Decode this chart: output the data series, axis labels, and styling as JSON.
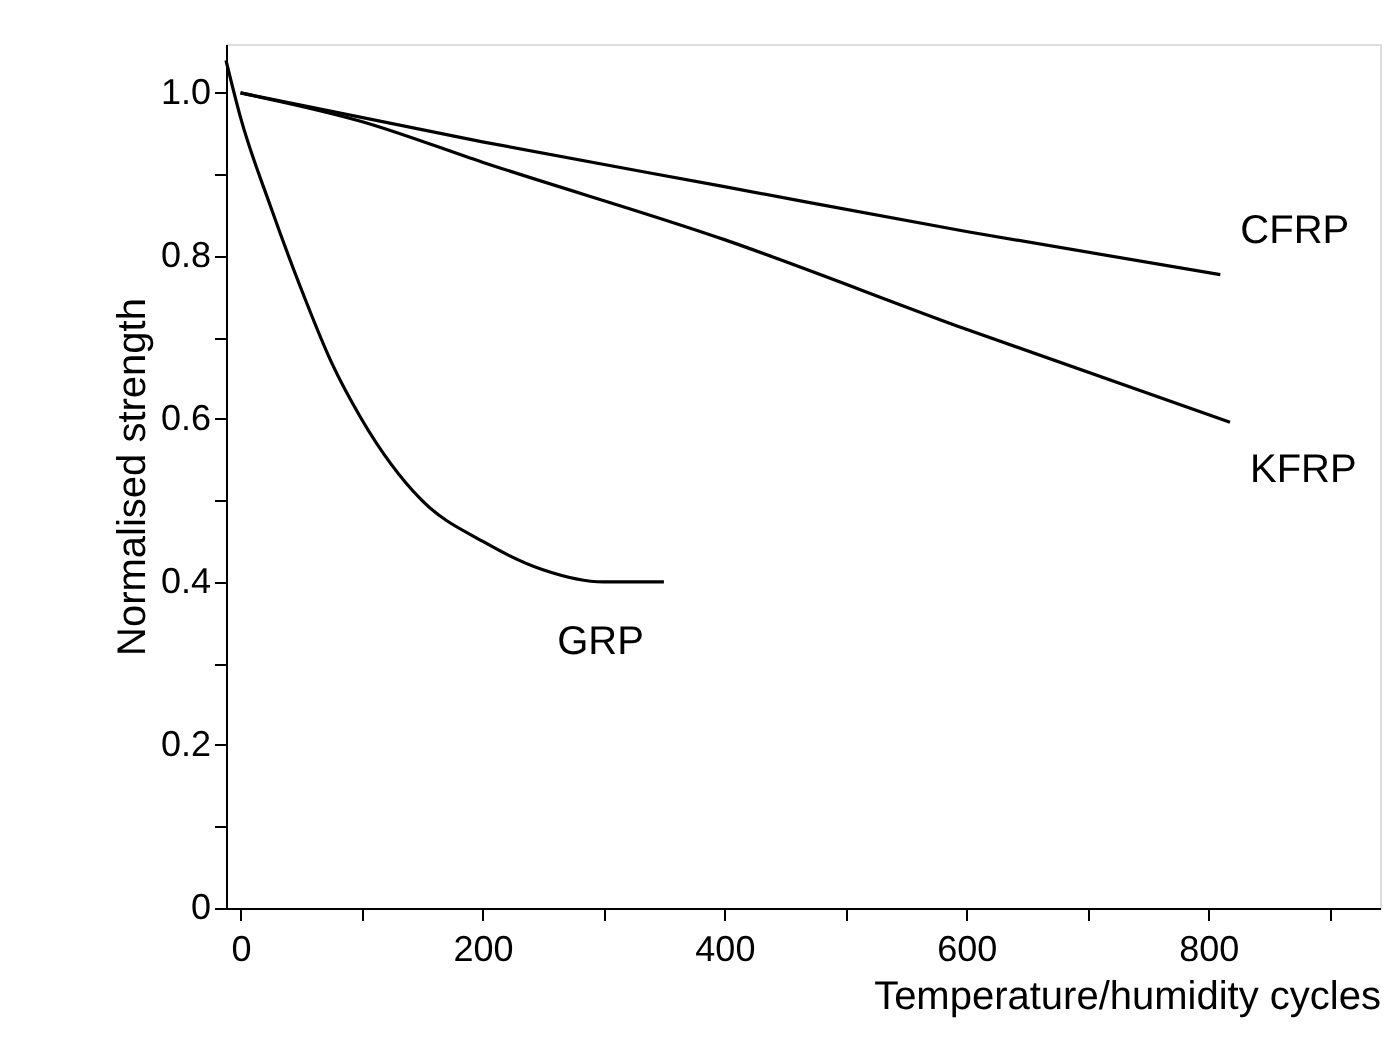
{
  "chart_data": {
    "type": "line",
    "xlabel": "Temperature/humidity cycles",
    "ylabel": "Normalised strength",
    "xlim": [
      -12,
      942
    ],
    "ylim": [
      0,
      1.06
    ],
    "xticks": [
      0,
      {
        "value": 100,
        "label": null
      },
      200,
      {
        "value": 300,
        "label": null
      },
      400,
      {
        "value": 500,
        "label": null
      },
      600,
      {
        "value": 700,
        "label": null
      },
      800,
      {
        "value": 900,
        "label": null
      }
    ],
    "yticks": [
      0,
      {
        "value": 0.1,
        "label": null
      },
      0.2,
      {
        "value": 0.3,
        "label": null
      },
      0.4,
      {
        "value": 0.5,
        "label": null
      },
      0.6,
      {
        "value": 0.7,
        "label": null
      },
      0.8,
      {
        "value": 0.9,
        "label": null
      },
      {
        "value": 1.0,
        "label": "1.0"
      }
    ],
    "grid": false,
    "marker": "none",
    "line_style": "solid",
    "series": [
      {
        "name": "CFRP",
        "color": "#000000",
        "x": [
          0,
          200,
          400,
          600,
          810
        ],
        "values": [
          1.0,
          0.94,
          0.885,
          0.83,
          0.777
        ]
      },
      {
        "name": "KFRP",
        "color": "#000000",
        "x": [
          0,
          100,
          200,
          400,
          600,
          818
        ],
        "values": [
          1.0,
          0.965,
          0.915,
          0.82,
          0.71,
          0.596
        ]
      },
      {
        "name": "GRP",
        "color": "#000000",
        "x": [
          -12,
          0,
          25,
          50,
          75,
          100,
          150,
          200,
          250,
          300,
          350
        ],
        "values": [
          1.04,
          0.97,
          0.86,
          0.76,
          0.67,
          0.6,
          0.5,
          0.45,
          0.415,
          0.4,
          0.4
        ]
      }
    ]
  }
}
